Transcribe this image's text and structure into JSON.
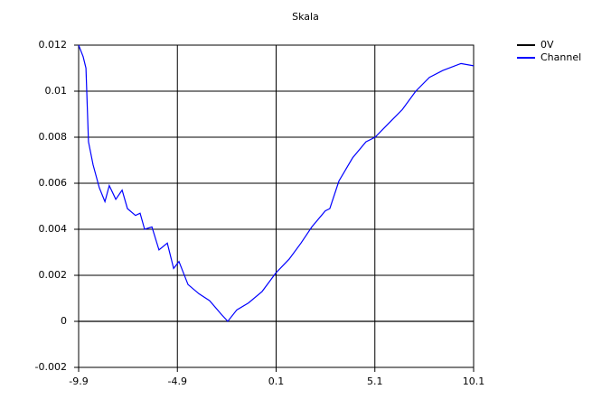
{
  "chart_data": {
    "type": "line",
    "title": "Skala",
    "xlim": [
      -9.9,
      10.1
    ],
    "xticks": [
      -9.9,
      -4.9,
      0.1,
      5.1,
      10.1
    ],
    "ylim": [
      -0.002,
      0.012
    ],
    "yticks": [
      -0.002,
      0,
      0.002,
      0.004,
      0.006,
      0.008,
      0.01,
      0.012
    ],
    "grid": true,
    "legend": "right",
    "series": [
      {
        "name": "0V",
        "color": "#000000",
        "x": [
          -9.9,
          10.1
        ],
        "values": [
          0,
          0
        ]
      },
      {
        "name": "Channel",
        "color": "#0000ff",
        "x": [
          -9.9,
          -9.67,
          -9.53,
          -9.4,
          -9.17,
          -8.85,
          -8.57,
          -8.35,
          -8.02,
          -7.7,
          -7.43,
          -7.02,
          -6.79,
          -6.56,
          -6.19,
          -5.83,
          -5.41,
          -5.09,
          -4.82,
          -4.36,
          -3.81,
          -3.27,
          -2.67,
          -2.35,
          -1.89,
          -1.3,
          -0.61,
          0.08,
          0.76,
          1.36,
          1.91,
          2.59,
          2.82,
          3.28,
          3.97,
          4.65,
          5.11,
          5.8,
          6.49,
          7.17,
          7.86,
          8.54,
          9.46,
          10.1
        ],
        "values": [
          0.012,
          0.0115,
          0.011,
          0.0078,
          0.0068,
          0.0058,
          0.0052,
          0.0059,
          0.0053,
          0.0057,
          0.0049,
          0.0046,
          0.0047,
          0.004,
          0.0041,
          0.0031,
          0.0034,
          0.0023,
          0.0026,
          0.0016,
          0.0012,
          0.0009,
          0.0003,
          0,
          0.0005,
          0.0008,
          0.0013,
          0.0021,
          0.0027,
          0.0034,
          0.0041,
          0.0048,
          0.0049,
          0.0061,
          0.0071,
          0.0078,
          0.008,
          0.0086,
          0.0092,
          0.01,
          0.0106,
          0.0109,
          0.0112,
          0.0111
        ]
      }
    ]
  }
}
